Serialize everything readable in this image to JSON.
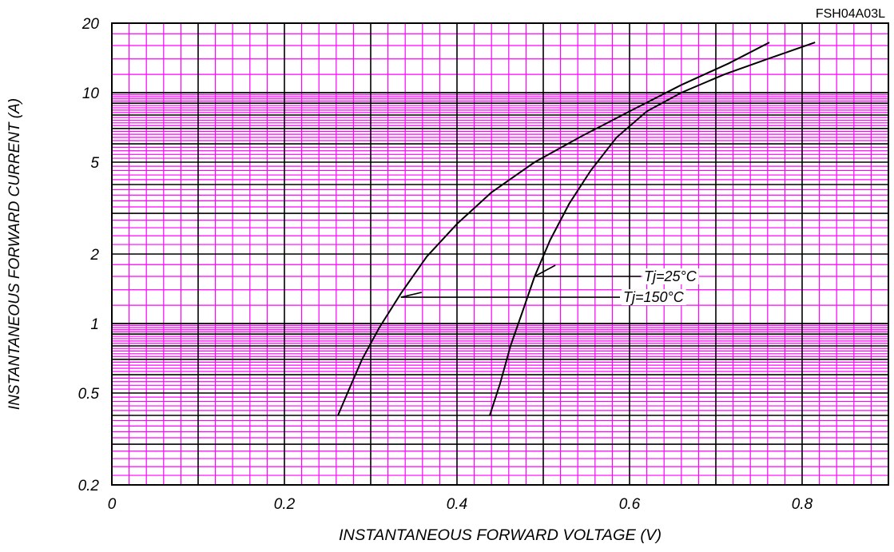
{
  "part_number": "FSH04A03L",
  "chart_data": {
    "type": "line",
    "title": "",
    "xlabel": "INSTANTANEOUS FORWARD VOLTAGE (V)",
    "ylabel": "INSTANTANEOUS FORWARD CURRENT (A)",
    "x_scale": "linear",
    "y_scale": "log",
    "xlim": [
      0,
      0.9
    ],
    "ylim": [
      0.2,
      20
    ],
    "x_ticks": [
      0,
      0.2,
      0.4,
      0.6,
      0.8
    ],
    "x_tick_labels": [
      "0",
      "0.2",
      "0.4",
      "0.6",
      "0.8"
    ],
    "y_ticks": [
      0.2,
      0.5,
      1,
      2,
      5,
      10,
      20
    ],
    "y_tick_labels": [
      "0.2",
      "0.5",
      "1",
      "2",
      "5",
      "10",
      "20"
    ],
    "grid": true,
    "grid_colors": {
      "major": "#000000",
      "minor": "#ff00ff"
    },
    "series": [
      {
        "name": "Tj=25°C",
        "color": "#000000",
        "x": [
          0.438,
          0.45,
          0.462,
          0.475,
          0.49,
          0.508,
          0.53,
          0.555,
          0.585,
          0.62,
          0.66,
          0.71,
          0.76,
          0.815
        ],
        "y": [
          0.4,
          0.55,
          0.8,
          1.1,
          1.6,
          2.3,
          3.3,
          4.6,
          6.4,
          8.3,
          10.0,
          12.0,
          14.0,
          16.5
        ]
      },
      {
        "name": "Tj=150°C",
        "color": "#000000",
        "x": [
          0.262,
          0.275,
          0.29,
          0.31,
          0.335,
          0.365,
          0.4,
          0.44,
          0.49,
          0.545,
          0.6,
          0.66,
          0.715,
          0.762
        ],
        "y": [
          0.4,
          0.52,
          0.7,
          0.96,
          1.35,
          1.95,
          2.7,
          3.7,
          5.0,
          6.5,
          8.3,
          10.8,
          13.4,
          16.5
        ]
      }
    ],
    "annotations": [
      {
        "text": "Tj=25°C",
        "series": 0,
        "at_x": 0.49,
        "at_y": 1.6
      },
      {
        "text": "Tj=150°C",
        "series": 1,
        "at_x": 0.335,
        "at_y": 1.3
      }
    ]
  }
}
